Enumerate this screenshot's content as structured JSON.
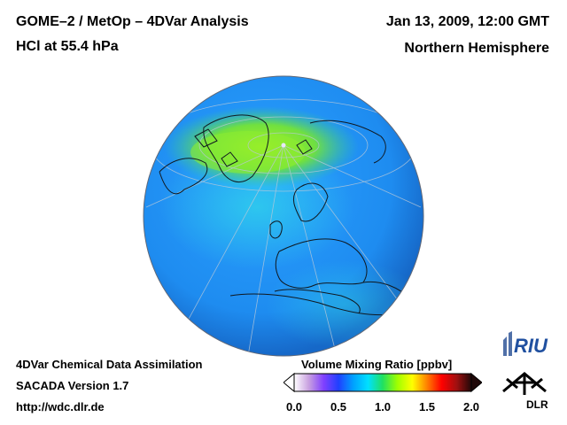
{
  "header": {
    "title": "GOME–2 / MetOp – 4DVar Analysis",
    "subtitle": "HCl at 55.4 hPa",
    "date": "Jan 13, 2009, 12:00 GMT",
    "region": "Northern Hemisphere"
  },
  "footer": {
    "line1": "4DVar Chemical Data Assimilation",
    "line2": "SACADA Version 1.7",
    "line3": "http://wdc.dlr.de"
  },
  "colorbar": {
    "title": "Volume Mixing Ratio [ppbv]",
    "min": 0.0,
    "max": 2.0,
    "ticks": [
      "0.0",
      "0.5",
      "1.0",
      "1.5",
      "2.0"
    ],
    "colors": [
      "#ffffff",
      "#c8a0e0",
      "#8040ff",
      "#2040ff",
      "#00a0ff",
      "#00e0ff",
      "#20e060",
      "#a0ff00",
      "#ffff00",
      "#ff8000",
      "#ff0000",
      "#a01010",
      "#200808"
    ]
  },
  "map": {
    "background_color": "#1e90ff",
    "enhanced_color": "#7fe040"
  },
  "logos": {
    "riu": "RIU",
    "dlr": "DLR"
  }
}
